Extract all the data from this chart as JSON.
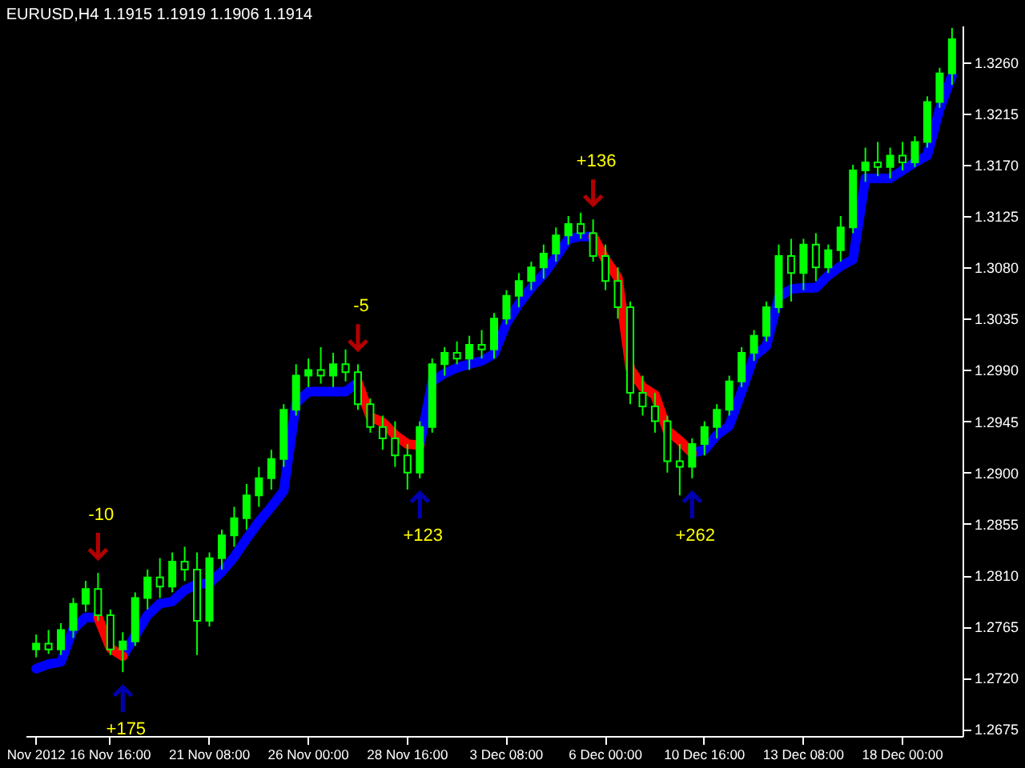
{
  "chart_data": {
    "type": "candlestick",
    "title": "EURUSD,H4  1.1915 1.1919 1.1906 1.1914",
    "color": "#00ff00",
    "categories": [
      "Nov 2012",
      null,
      null,
      null,
      null,
      null,
      "16 Nov 16:00",
      null,
      null,
      null,
      null,
      null,
      null,
      null,
      "21 Nov 08:00",
      null,
      null,
      null,
      null,
      null,
      null,
      null,
      "26 Nov 00:00",
      null,
      null,
      null,
      null,
      null,
      null,
      null,
      "28 Nov 16:00",
      null,
      null,
      null,
      null,
      null,
      null,
      null,
      "3 Dec 08:00",
      null,
      null,
      null,
      null,
      null,
      null,
      null,
      "6 Dec 00:00",
      null,
      null,
      null,
      null,
      null,
      null,
      null,
      "10 Dec 16:00",
      null,
      null,
      null,
      null,
      null,
      null,
      null,
      "13 Dec 08:00",
      null,
      null,
      null,
      null,
      null,
      null,
      null,
      "18 Dec 00:00",
      null,
      null,
      null,
      null
    ],
    "ohlc": [
      [
        1.2745,
        1.2758,
        1.2738,
        1.275
      ],
      [
        1.275,
        1.2762,
        1.2741,
        1.2745
      ],
      [
        1.2745,
        1.2768,
        1.274,
        1.2762
      ],
      [
        1.2762,
        1.279,
        1.2755,
        1.2785
      ],
      [
        1.2785,
        1.2805,
        1.2778,
        1.2798
      ],
      [
        1.2798,
        1.2812,
        1.277,
        1.2775
      ],
      [
        1.2775,
        1.278,
        1.274,
        1.2745
      ],
      [
        1.2745,
        1.276,
        1.2725,
        1.2752
      ],
      [
        1.2752,
        1.2795,
        1.2748,
        1.279
      ],
      [
        1.279,
        1.2815,
        1.278,
        1.2808
      ],
      [
        1.2808,
        1.2825,
        1.279,
        1.28
      ],
      [
        1.28,
        1.283,
        1.2795,
        1.2822
      ],
      [
        1.2822,
        1.2835,
        1.2805,
        1.2815
      ],
      [
        1.2815,
        1.283,
        1.274,
        1.277
      ],
      [
        1.277,
        1.283,
        1.2765,
        1.2825
      ],
      [
        1.2825,
        1.285,
        1.2815,
        1.2845
      ],
      [
        1.2845,
        1.287,
        1.2835,
        1.286
      ],
      [
        1.286,
        1.289,
        1.285,
        1.288
      ],
      [
        1.288,
        1.2905,
        1.287,
        1.2895
      ],
      [
        1.2895,
        1.292,
        1.2885,
        1.2912
      ],
      [
        1.2912,
        1.296,
        1.2905,
        1.2955
      ],
      [
        1.2955,
        1.2995,
        1.295,
        1.2985
      ],
      [
        1.2985,
        1.3,
        1.2975,
        1.299
      ],
      [
        1.299,
        1.301,
        1.2978,
        1.2985
      ],
      [
        1.2985,
        1.3005,
        1.2975,
        1.2995
      ],
      [
        1.2995,
        1.3008,
        1.298,
        1.2988
      ],
      [
        1.2988,
        1.2995,
        1.2955,
        1.296
      ],
      [
        1.296,
        1.2965,
        1.2935,
        1.294
      ],
      [
        1.294,
        1.295,
        1.292,
        1.293
      ],
      [
        1.293,
        1.2945,
        1.2905,
        1.2915
      ],
      [
        1.2915,
        1.2925,
        1.2885,
        1.29
      ],
      [
        1.29,
        1.2945,
        1.2895,
        1.294
      ],
      [
        1.294,
        1.3,
        1.2935,
        1.2995
      ],
      [
        1.2995,
        1.301,
        1.2985,
        1.3005
      ],
      [
        1.3005,
        1.3015,
        1.2995,
        1.3
      ],
      [
        1.3,
        1.302,
        1.299,
        1.3012
      ],
      [
        1.3012,
        1.3025,
        1.3,
        1.3008
      ],
      [
        1.3008,
        1.304,
        1.3,
        1.3035
      ],
      [
        1.3035,
        1.306,
        1.303,
        1.3055
      ],
      [
        1.3055,
        1.3075,
        1.3045,
        1.3068
      ],
      [
        1.3068,
        1.3085,
        1.306,
        1.308
      ],
      [
        1.308,
        1.31,
        1.307,
        1.3092
      ],
      [
        1.3092,
        1.3115,
        1.3085,
        1.3108
      ],
      [
        1.3108,
        1.3125,
        1.31,
        1.3118
      ],
      [
        1.3118,
        1.3128,
        1.3105,
        1.311
      ],
      [
        1.311,
        1.3122,
        1.3085,
        1.309
      ],
      [
        1.309,
        1.31,
        1.306,
        1.3068
      ],
      [
        1.3068,
        1.308,
        1.3035,
        1.3045
      ],
      [
        1.3045,
        1.305,
        1.296,
        1.297
      ],
      [
        1.297,
        1.2985,
        1.295,
        1.2958
      ],
      [
        1.2958,
        1.297,
        1.2935,
        1.2945
      ],
      [
        1.2945,
        1.295,
        1.29,
        1.291
      ],
      [
        1.291,
        1.2925,
        1.288,
        1.2905
      ],
      [
        1.2905,
        1.293,
        1.2895,
        1.2925
      ],
      [
        1.2925,
        1.2945,
        1.2915,
        1.294
      ],
      [
        1.294,
        1.296,
        1.293,
        1.2955
      ],
      [
        1.2955,
        1.2985,
        1.295,
        1.298
      ],
      [
        1.298,
        1.301,
        1.2975,
        1.3005
      ],
      [
        1.3005,
        1.3025,
        1.2998,
        1.302
      ],
      [
        1.302,
        1.305,
        1.3015,
        1.3045
      ],
      [
        1.3045,
        1.31,
        1.304,
        1.309
      ],
      [
        1.309,
        1.3105,
        1.305,
        1.3075
      ],
      [
        1.3075,
        1.3105,
        1.306,
        1.31
      ],
      [
        1.31,
        1.311,
        1.3068,
        1.308
      ],
      [
        1.308,
        1.31,
        1.3075,
        1.3095
      ],
      [
        1.3095,
        1.3125,
        1.3085,
        1.3115
      ],
      [
        1.3115,
        1.317,
        1.311,
        1.3165
      ],
      [
        1.3165,
        1.3185,
        1.3155,
        1.3172
      ],
      [
        1.3172,
        1.319,
        1.316,
        1.3168
      ],
      [
        1.3168,
        1.3185,
        1.3158,
        1.3178
      ],
      [
        1.3178,
        1.319,
        1.3165,
        1.3172
      ],
      [
        1.3172,
        1.3195,
        1.3168,
        1.319
      ],
      [
        1.319,
        1.323,
        1.3185,
        1.3225
      ],
      [
        1.3225,
        1.3255,
        1.322,
        1.325
      ],
      [
        1.325,
        1.329,
        1.324,
        1.328
      ]
    ],
    "series": [
      {
        "type": "line",
        "color": "#0000ff",
        "values": [
          1.2728,
          1.2732,
          1.2734,
          1.2763,
          1.2773,
          1.2773,
          null,
          1.2739,
          1.2757,
          1.2775,
          1.2785,
          1.2787,
          1.2797,
          1.2802,
          1.2803,
          1.2813,
          1.2826,
          1.2842,
          1.2857,
          1.287,
          1.2884,
          1.2961,
          1.2971,
          1.2971,
          1.2971,
          1.2971,
          1.2979,
          null,
          null,
          null,
          null,
          1.2924,
          1.298,
          1.2987,
          1.2992,
          1.2995,
          1.2998,
          1.3004,
          1.3031,
          1.3048,
          1.3062,
          1.3074,
          1.3089,
          1.3105,
          1.3107,
          1.3107,
          null,
          null,
          null,
          null,
          null,
          null,
          null,
          1.2917,
          1.292,
          1.2933,
          1.2941,
          1.2971,
          1.3002,
          1.3011,
          1.3054,
          1.3061,
          1.3062,
          1.3062,
          1.3073,
          1.3081,
          1.3087,
          1.3158,
          1.3158,
          1.3158,
          1.3165,
          1.3172,
          1.3178,
          1.3219,
          1.3248
        ]
      },
      {
        "type": "line",
        "color": "#ff0000",
        "values": [
          null,
          null,
          null,
          null,
          null,
          1.2773,
          1.2746,
          1.2739,
          null,
          null,
          null,
          null,
          null,
          null,
          null,
          null,
          null,
          null,
          null,
          null,
          null,
          null,
          null,
          null,
          null,
          null,
          1.2979,
          1.2949,
          1.2944,
          1.2933,
          1.2925,
          1.2924,
          null,
          null,
          null,
          null,
          null,
          null,
          null,
          null,
          null,
          null,
          null,
          null,
          null,
          1.3107,
          1.3087,
          1.3071,
          1.2991,
          1.2975,
          1.2968,
          1.2937,
          1.2928,
          1.2917,
          null,
          null,
          null,
          null,
          null,
          null,
          null,
          null,
          null,
          null,
          null,
          null,
          null,
          null,
          null,
          null,
          null,
          null,
          null,
          null,
          null
        ]
      }
    ],
    "ylim": [
      1.2669,
      1.3292
    ],
    "yticks": [
      {
        "value": 1.2675,
        "label": "1.2675"
      },
      {
        "value": 1.272,
        "label": "1.2720"
      },
      {
        "value": 1.2765,
        "label": "1.2765"
      },
      {
        "value": 1.281,
        "label": "1.2810"
      },
      {
        "value": 1.2855,
        "label": "1.2855"
      },
      {
        "value": 1.29,
        "label": "1.2900"
      },
      {
        "value": 1.2945,
        "label": "1.2945"
      },
      {
        "value": 1.299,
        "label": "1.2990"
      },
      {
        "value": 1.3035,
        "label": "1.3035"
      },
      {
        "value": 1.308,
        "label": "1.3080"
      },
      {
        "value": 1.3125,
        "label": "1.3125"
      },
      {
        "value": 1.317,
        "label": "1.3170"
      },
      {
        "value": 1.3215,
        "label": "1.3215"
      },
      {
        "value": 1.326,
        "label": "1.3260"
      }
    ],
    "annotations": [
      "-10",
      "+175",
      "-5",
      "+123",
      "+136",
      "+262"
    ]
  }
}
